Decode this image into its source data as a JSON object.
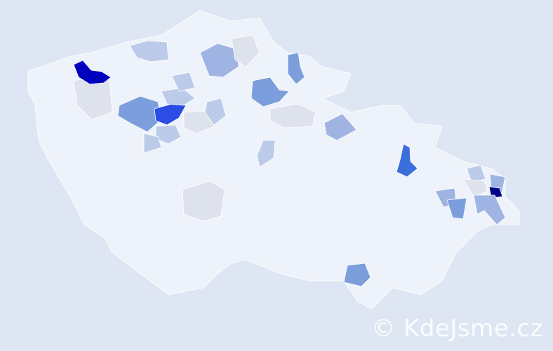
{
  "watermark": "© KdeJsme.cz",
  "colors": {
    "background": "#dde6f2",
    "base": "#eef2fa",
    "neutral": "#dde2ec",
    "light": "#bccbea",
    "medium_light": "#9fb4e2",
    "medium": "#7c9edc",
    "strong": "#3d6fdc",
    "bright": "#2b4de6",
    "dark": "#0000c0",
    "darkest": "#00008a"
  },
  "legend": "none"
}
